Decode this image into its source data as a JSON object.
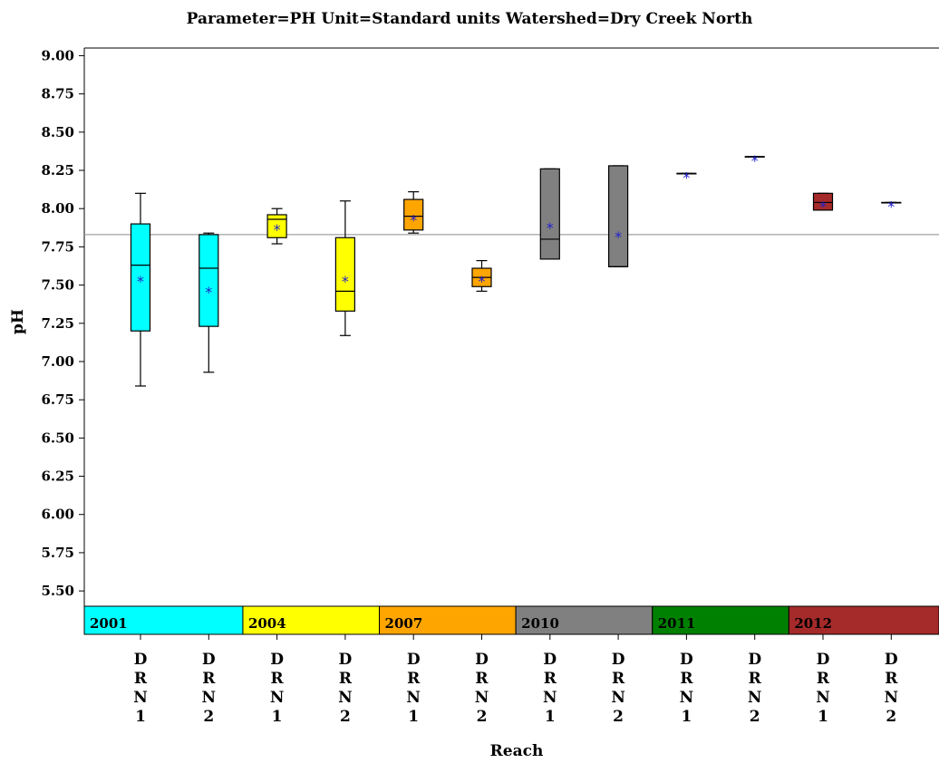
{
  "chart_data": {
    "type": "boxplot",
    "title": "Parameter=PH  Unit=Standard units  Watershed=Dry Creek North",
    "xlabel": "Reach",
    "ylabel": "pH",
    "ylim": [
      5.4,
      9.05
    ],
    "yticks": [
      "5.50",
      "5.75",
      "6.00",
      "6.25",
      "6.50",
      "6.75",
      "7.00",
      "7.25",
      "7.50",
      "7.75",
      "8.00",
      "8.25",
      "8.50",
      "8.75",
      "9.00"
    ],
    "reference_line": 7.83,
    "groups": [
      {
        "label": "2001",
        "color": "#00ffff"
      },
      {
        "label": "2004",
        "color": "#ffff00"
      },
      {
        "label": "2007",
        "color": "#ffa500"
      },
      {
        "label": "2010",
        "color": "#808080"
      },
      {
        "label": "2011",
        "color": "#008000"
      },
      {
        "label": "2012",
        "color": "#a52a2a"
      }
    ],
    "categories": [
      {
        "label": "DRN1",
        "group": 0,
        "whisker_low": 6.84,
        "q1": 7.2,
        "median": 7.63,
        "q3": 7.9,
        "whisker_high": 8.1,
        "mean": 7.55
      },
      {
        "label": "DRN2",
        "group": 0,
        "whisker_low": 6.93,
        "q1": 7.23,
        "median": 7.61,
        "q3": 7.83,
        "whisker_high": 7.84,
        "mean": 7.48
      },
      {
        "label": "DRN1",
        "group": 1,
        "whisker_low": 7.77,
        "q1": 7.81,
        "median": 7.93,
        "q3": 7.96,
        "whisker_high": 8.0,
        "mean": 7.89
      },
      {
        "label": "DRN2",
        "group": 1,
        "whisker_low": 7.17,
        "q1": 7.33,
        "median": 7.46,
        "q3": 7.81,
        "whisker_high": 8.05,
        "mean": 7.55
      },
      {
        "label": "DRN1",
        "group": 2,
        "whisker_low": 7.84,
        "q1": 7.86,
        "median": 7.95,
        "q3": 8.06,
        "whisker_high": 8.11,
        "mean": 7.95
      },
      {
        "label": "DRN2",
        "group": 2,
        "whisker_low": 7.46,
        "q1": 7.49,
        "median": 7.55,
        "q3": 7.61,
        "whisker_high": 7.66,
        "mean": 7.55
      },
      {
        "label": "DRN1",
        "group": 3,
        "whisker_low": 7.67,
        "q1": 7.67,
        "median": 7.8,
        "q3": 8.26,
        "whisker_high": 8.26,
        "mean": 7.9
      },
      {
        "label": "DRN2",
        "group": 3,
        "whisker_low": 7.62,
        "q1": 7.62,
        "median": 7.62,
        "q3": 8.28,
        "whisker_high": 8.28,
        "mean": 7.84
      },
      {
        "label": "DRN1",
        "group": 4,
        "whisker_low": 8.23,
        "q1": 8.23,
        "median": 8.23,
        "q3": 8.23,
        "whisker_high": 8.23,
        "mean": 8.23
      },
      {
        "label": "DRN2",
        "group": 4,
        "whisker_low": 8.34,
        "q1": 8.34,
        "median": 8.34,
        "q3": 8.34,
        "whisker_high": 8.34,
        "mean": 8.34
      },
      {
        "label": "DRN1",
        "group": 5,
        "whisker_low": 7.99,
        "q1": 7.99,
        "median": 8.04,
        "q3": 8.1,
        "whisker_high": 8.1,
        "mean": 8.04
      },
      {
        "label": "DRN2",
        "group": 5,
        "whisker_low": 8.04,
        "q1": 8.04,
        "median": 8.04,
        "q3": 8.04,
        "whisker_high": 8.04,
        "mean": 8.04
      }
    ],
    "mean_marker": "*",
    "grid": false
  }
}
